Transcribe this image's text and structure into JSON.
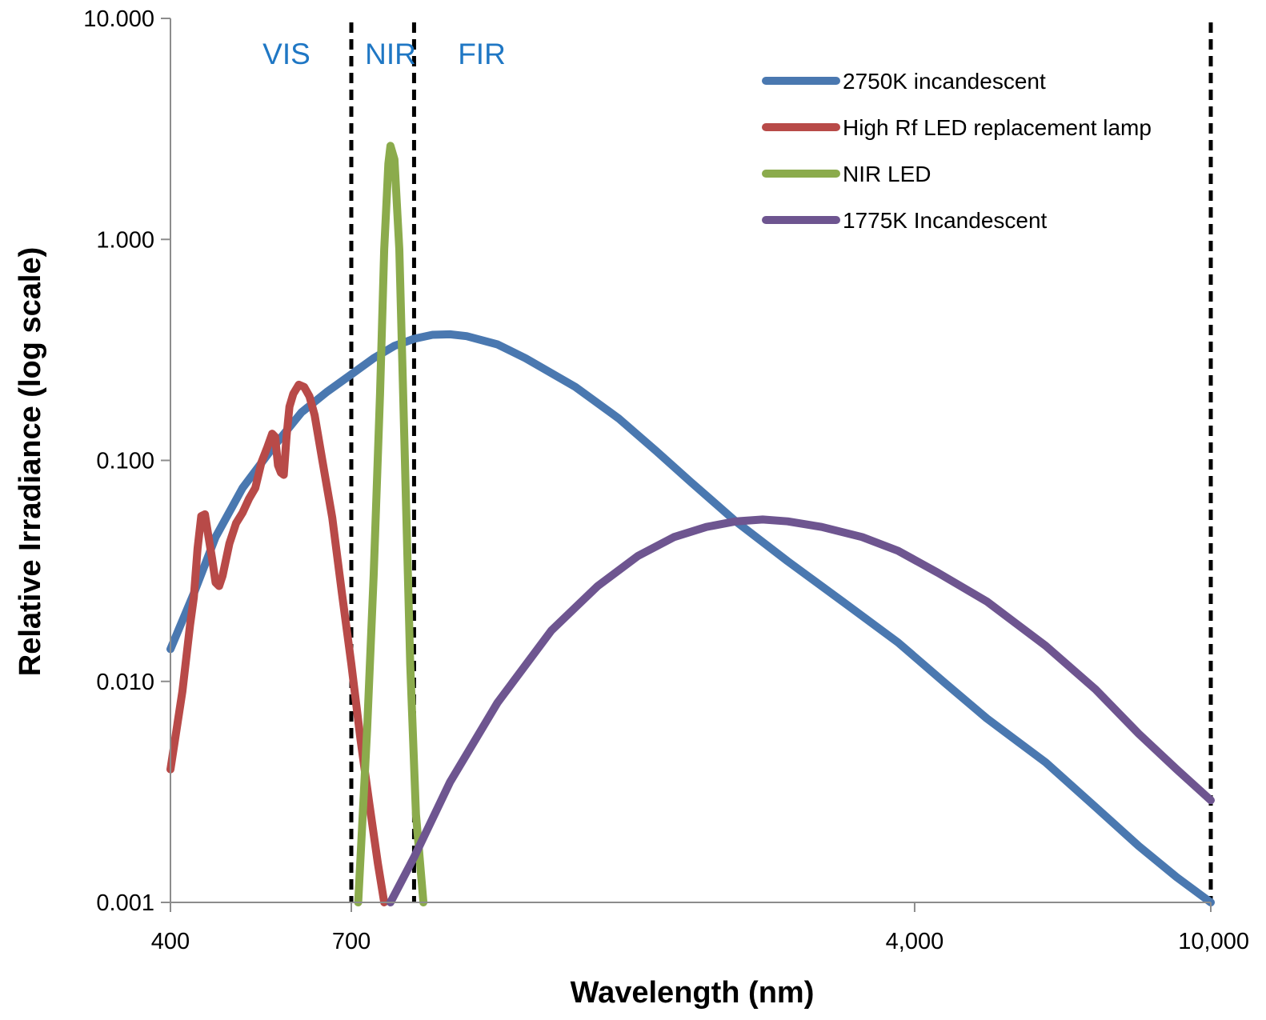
{
  "chart_data": {
    "type": "line",
    "title": "",
    "xlabel": "Wavelength (nm)",
    "ylabel": "Relative Irradiance (log scale)",
    "x_scale": "log",
    "y_scale": "log",
    "xlim": [
      400,
      10000
    ],
    "ylim": [
      0.001,
      10
    ],
    "x_ticks": [
      {
        "value": 400,
        "label": "400"
      },
      {
        "value": 700,
        "label": "700"
      },
      {
        "value": 4000,
        "label": "4,000"
      },
      {
        "value": 10000,
        "label": "10,000"
      }
    ],
    "y_ticks": [
      {
        "value": 0.001,
        "label": "0.001"
      },
      {
        "value": 0.01,
        "label": "0.010"
      },
      {
        "value": 0.1,
        "label": "0.100"
      },
      {
        "value": 1,
        "label": "1.000"
      },
      {
        "value": 10,
        "label": "10.000"
      }
    ],
    "grid": false,
    "legend_position": "top-right",
    "regions": [
      {
        "label": "VIS",
        "from": 400,
        "to": 700
      },
      {
        "label": "NIR",
        "from": 700,
        "to": 850
      },
      {
        "label": "FIR",
        "from": 850,
        "to": 10000
      }
    ],
    "region_boundaries": [
      700,
      850,
      10000
    ],
    "series": [
      {
        "name": "2750K incandescent",
        "color": "#4a78b0",
        "points": [
          [
            400,
            0.014
          ],
          [
            430,
            0.025
          ],
          [
            460,
            0.045
          ],
          [
            500,
            0.075
          ],
          [
            550,
            0.115
          ],
          [
            600,
            0.165
          ],
          [
            650,
            0.205
          ],
          [
            700,
            0.245
          ],
          [
            750,
            0.29
          ],
          [
            800,
            0.33
          ],
          [
            850,
            0.355
          ],
          [
            900,
            0.37
          ],
          [
            950,
            0.372
          ],
          [
            1000,
            0.365
          ],
          [
            1100,
            0.335
          ],
          [
            1200,
            0.29
          ],
          [
            1400,
            0.215
          ],
          [
            1600,
            0.155
          ],
          [
            1800,
            0.11
          ],
          [
            2000,
            0.08
          ],
          [
            2300,
            0.053
          ],
          [
            2700,
            0.035
          ],
          [
            3200,
            0.023
          ],
          [
            3800,
            0.015
          ],
          [
            4400,
            0.0098
          ],
          [
            5000,
            0.0068
          ],
          [
            6000,
            0.0043
          ],
          [
            7000,
            0.0027
          ],
          [
            8000,
            0.0018
          ],
          [
            9000,
            0.0013
          ],
          [
            10000,
            0.001
          ]
        ]
      },
      {
        "name": "High Rf LED replacement lamp",
        "color": "#b84a48",
        "points": [
          [
            400,
            0.004
          ],
          [
            415,
            0.009
          ],
          [
            425,
            0.018
          ],
          [
            430,
            0.024
          ],
          [
            435,
            0.04
          ],
          [
            440,
            0.056
          ],
          [
            445,
            0.057
          ],
          [
            450,
            0.045
          ],
          [
            455,
            0.036
          ],
          [
            460,
            0.028
          ],
          [
            465,
            0.027
          ],
          [
            470,
            0.03
          ],
          [
            480,
            0.042
          ],
          [
            490,
            0.052
          ],
          [
            500,
            0.058
          ],
          [
            510,
            0.067
          ],
          [
            520,
            0.075
          ],
          [
            530,
            0.098
          ],
          [
            540,
            0.115
          ],
          [
            548,
            0.132
          ],
          [
            553,
            0.128
          ],
          [
            558,
            0.095
          ],
          [
            563,
            0.088
          ],
          [
            568,
            0.086
          ],
          [
            573,
            0.13
          ],
          [
            578,
            0.175
          ],
          [
            585,
            0.2
          ],
          [
            595,
            0.22
          ],
          [
            605,
            0.215
          ],
          [
            615,
            0.195
          ],
          [
            625,
            0.16
          ],
          [
            640,
            0.1
          ],
          [
            660,
            0.055
          ],
          [
            680,
            0.025
          ],
          [
            700,
            0.012
          ],
          [
            720,
            0.0055
          ],
          [
            740,
            0.0028
          ],
          [
            760,
            0.0015
          ],
          [
            775,
            0.001
          ]
        ]
      },
      {
        "name": "NIR LED",
        "color": "#8bab4c",
        "points": [
          [
            715,
            0.001
          ],
          [
            735,
            0.006
          ],
          [
            750,
            0.03
          ],
          [
            765,
            0.2
          ],
          [
            775,
            0.9
          ],
          [
            785,
            2.2
          ],
          [
            790,
            2.65
          ],
          [
            800,
            2.3
          ],
          [
            812,
            0.9
          ],
          [
            825,
            0.12
          ],
          [
            840,
            0.012
          ],
          [
            855,
            0.0025
          ],
          [
            875,
            0.001
          ]
        ]
      },
      {
        "name": "1775K Incandescent",
        "color": "#6e5590",
        "points": [
          [
            790,
            0.001
          ],
          [
            850,
            0.0016
          ],
          [
            950,
            0.0035
          ],
          [
            1100,
            0.008
          ],
          [
            1300,
            0.017
          ],
          [
            1500,
            0.027
          ],
          [
            1700,
            0.037
          ],
          [
            1900,
            0.045
          ],
          [
            2100,
            0.05
          ],
          [
            2300,
            0.053
          ],
          [
            2500,
            0.054
          ],
          [
            2700,
            0.053
          ],
          [
            3000,
            0.05
          ],
          [
            3400,
            0.045
          ],
          [
            3800,
            0.039
          ],
          [
            4300,
            0.031
          ],
          [
            5000,
            0.023
          ],
          [
            6000,
            0.0145
          ],
          [
            7000,
            0.0092
          ],
          [
            8000,
            0.0058
          ],
          [
            9000,
            0.004
          ],
          [
            10000,
            0.0029
          ]
        ]
      }
    ]
  }
}
